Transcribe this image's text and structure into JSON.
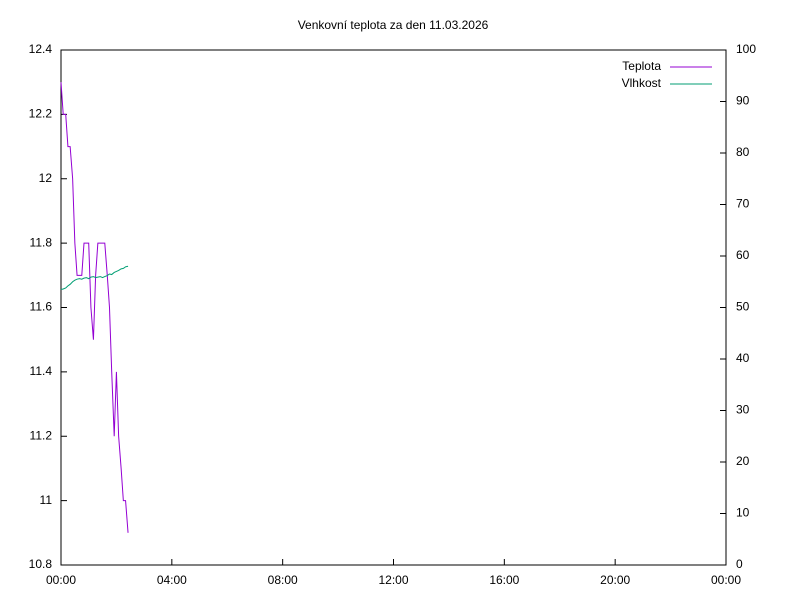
{
  "chart_data": {
    "type": "line",
    "title": "Venkovní teplota za den 11.03.2026",
    "x": [
      0,
      0.08,
      0.17,
      0.25,
      0.33,
      0.42,
      0.5,
      0.58,
      0.67,
      0.75,
      0.83,
      0.92,
      1.0,
      1.08,
      1.17,
      1.25,
      1.33,
      1.42,
      1.5,
      1.58,
      1.67,
      1.75,
      1.83,
      1.92,
      2.0,
      2.08,
      2.17,
      2.25,
      2.33,
      2.42
    ],
    "series": [
      {
        "name": "Teplota",
        "color": "#9400d3",
        "values": [
          12.3,
          12.2,
          12.2,
          12.1,
          12.1,
          12.0,
          11.8,
          11.7,
          11.7,
          11.7,
          11.8,
          11.8,
          11.8,
          11.6,
          11.5,
          11.7,
          11.8,
          11.8,
          11.8,
          11.8,
          11.7,
          11.6,
          11.4,
          11.2,
          11.4,
          11.2,
          11.1,
          11.0,
          11.0,
          10.9
        ]
      },
      {
        "name": "Vlhkost",
        "color": "#009e73",
        "axis": "y2",
        "values": [
          53.5,
          53.6,
          53.8,
          54.2,
          54.5,
          55,
          55.3,
          55.5,
          55.6,
          55.5,
          55.7,
          55.8,
          55.6,
          55.9,
          56,
          55.8,
          55.9,
          56,
          55.8,
          56,
          56.2,
          56.5,
          56.4,
          56.8,
          57,
          57.2,
          57.5,
          57.6,
          57.9,
          58
        ]
      }
    ],
    "xlim": [
      0,
      24
    ],
    "xticks": [
      {
        "value": 0,
        "label": "00:00"
      },
      {
        "value": 4,
        "label": "04:00"
      },
      {
        "value": 8,
        "label": "08:00"
      },
      {
        "value": 12,
        "label": "12:00"
      },
      {
        "value": 16,
        "label": "16:00"
      },
      {
        "value": 20,
        "label": "20:00"
      },
      {
        "value": 24,
        "label": "00:00"
      }
    ],
    "ylim": [
      10.8,
      12.4
    ],
    "yticks": [
      10.8,
      11,
      11.2,
      11.4,
      11.6,
      11.8,
      12,
      12.2,
      12.4
    ],
    "y2lim": [
      0,
      100
    ],
    "y2ticks": [
      0,
      10,
      20,
      30,
      40,
      50,
      60,
      70,
      80,
      90,
      100
    ],
    "legend": "top-right"
  }
}
